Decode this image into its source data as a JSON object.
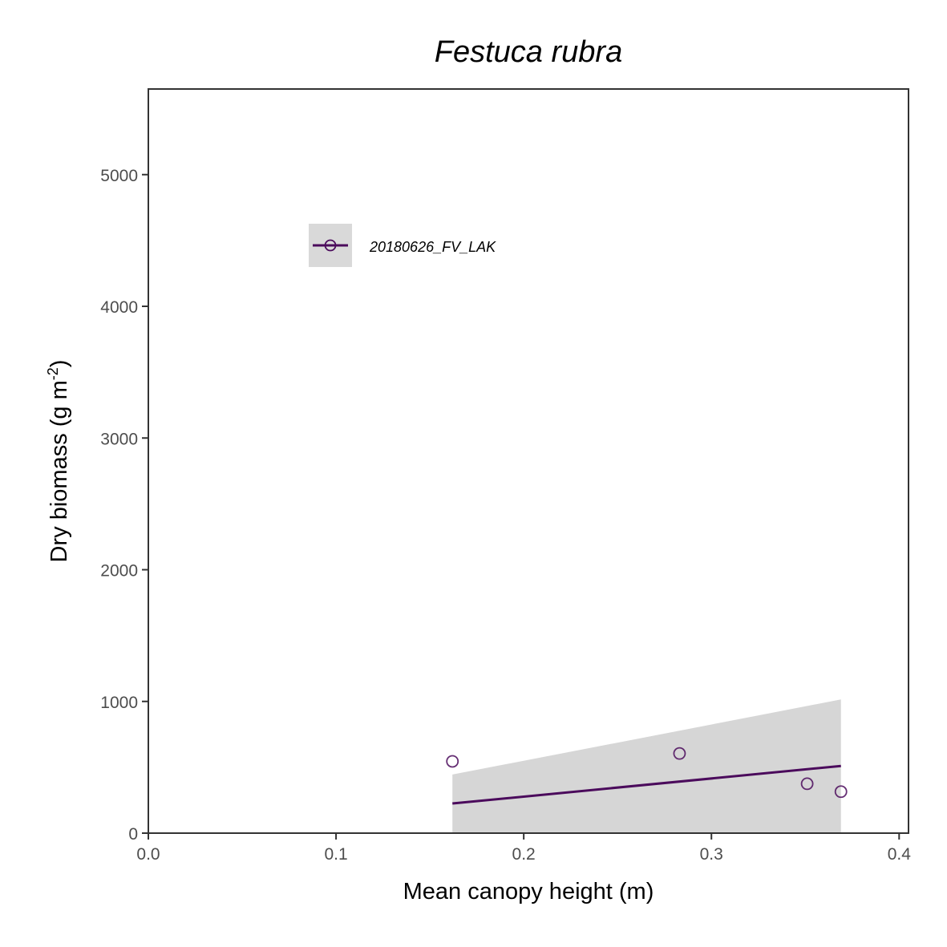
{
  "chart_data": {
    "type": "scatter",
    "title": "Festuca rubra",
    "xlabel": "Mean canopy height (m)",
    "ylabel": {
      "main": "Dry biomass (g m",
      "sup": "-2",
      "close": ")"
    },
    "xlim": [
      0.0,
      0.405
    ],
    "ylim": [
      0,
      5650
    ],
    "xticks": [
      0.0,
      0.1,
      0.2,
      0.3,
      0.4
    ],
    "xtick_labels": [
      "0.0",
      "0.1",
      "0.2",
      "0.3",
      "0.4"
    ],
    "yticks": [
      0,
      1000,
      2000,
      3000,
      4000,
      5000
    ],
    "ytick_labels": [
      "0",
      "1000",
      "2000",
      "3000",
      "4000",
      "5000"
    ],
    "grid": false,
    "legend_position": "top-left",
    "series": [
      {
        "name": "20180626_FV_LAK",
        "color": "#4b0b5c",
        "points": [
          {
            "x": 0.162,
            "y": 545
          },
          {
            "x": 0.283,
            "y": 605
          },
          {
            "x": 0.351,
            "y": 375
          },
          {
            "x": 0.369,
            "y": 315
          }
        ],
        "fit_line": {
          "x": [
            0.162,
            0.369
          ],
          "y": [
            225,
            510
          ]
        },
        "confidence_band": {
          "x": [
            0.162,
            0.369
          ],
          "lower": [
            0,
            0
          ],
          "upper": [
            445,
            1015
          ]
        }
      }
    ]
  }
}
